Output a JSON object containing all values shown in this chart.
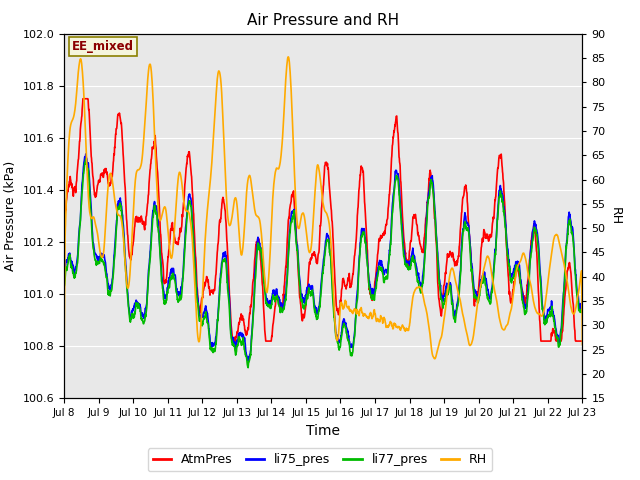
{
  "title": "Air Pressure and RH",
  "xlabel": "Time",
  "ylabel_left": "Air Pressure (kPa)",
  "ylabel_right": "RH",
  "annotation": "EE_mixed",
  "ylim_left": [
    100.6,
    102.0
  ],
  "ylim_right": [
    15,
    90
  ],
  "yticks_left": [
    100.6,
    100.8,
    101.0,
    101.2,
    101.4,
    101.6,
    101.8,
    102.0
  ],
  "yticks_right": [
    15,
    20,
    25,
    30,
    35,
    40,
    45,
    50,
    55,
    60,
    65,
    70,
    75,
    80,
    85,
    90
  ],
  "x_start": 8,
  "x_end": 23,
  "x_ticks": [
    8,
    9,
    10,
    11,
    12,
    13,
    14,
    15,
    16,
    17,
    18,
    19,
    20,
    21,
    22,
    23
  ],
  "x_tick_labels": [
    "Jul 8",
    "Jul 9",
    "Jul 10",
    "Jul 11",
    "Jul 12",
    "Jul 13",
    "Jul 14",
    "Jul 15",
    "Jul 16",
    "Jul 17",
    "Jul 18",
    "Jul 19",
    "Jul 20",
    "Jul 21",
    "Jul 22",
    "Jul 23"
  ],
  "series_colors": {
    "AtmPres": "#ff0000",
    "li75_pres": "#0000ff",
    "li77_pres": "#00bb00",
    "RH": "#ffaa00"
  },
  "linewidth": 1.2,
  "background_color": "#ffffff",
  "plot_bg_color": "#e8e8e8",
  "grid_color": "#ffffff",
  "annotation_bg": "#f5f5dc",
  "annotation_border": "#8B8000",
  "figsize": [
    6.4,
    4.8
  ],
  "dpi": 100
}
